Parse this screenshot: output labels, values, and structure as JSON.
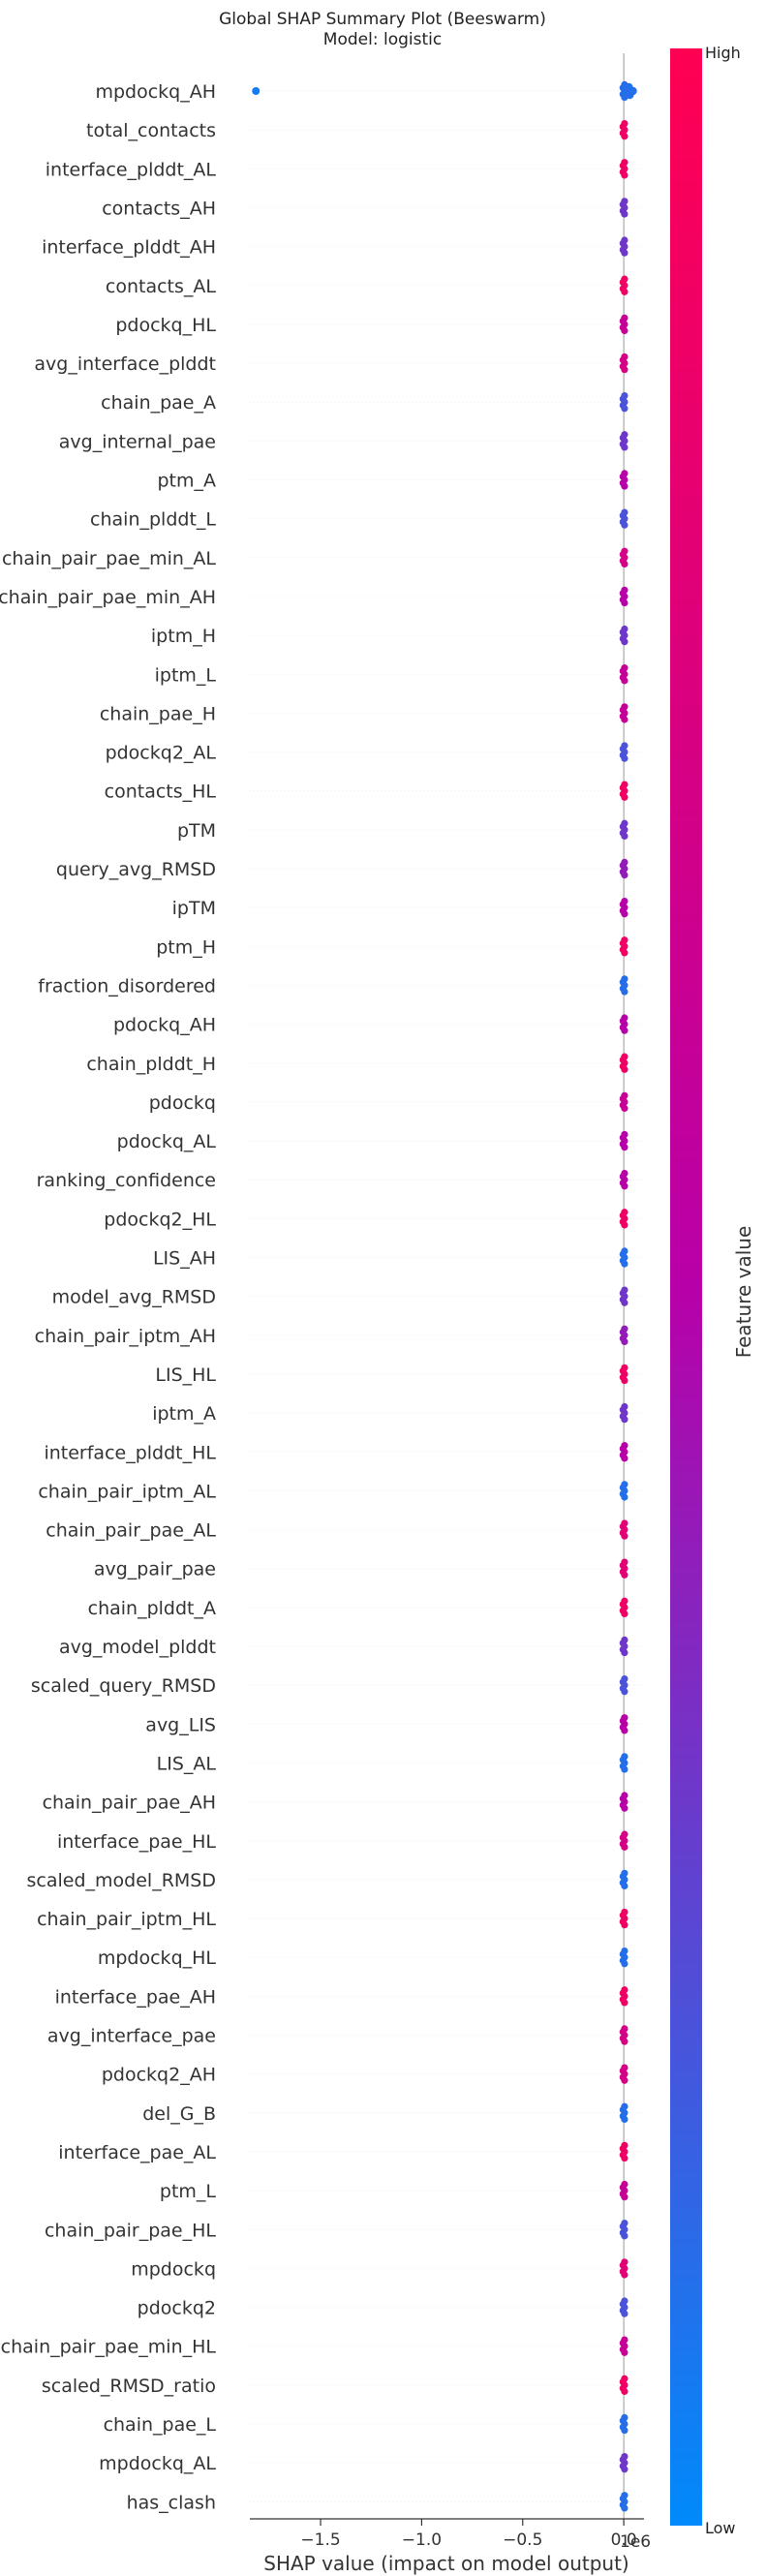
{
  "chart_data": {
    "type": "scatter",
    "subtype": "beeswarm",
    "title": "Global SHAP Summary Plot (Beeswarm)",
    "subtitle": "Model: logistic",
    "xlabel": "SHAP value (impact on model output)",
    "x_offset_label": "1e6",
    "xlim": [
      -1.85,
      0.1
    ],
    "x_ticks": [
      -1.5,
      -1.0,
      -0.5,
      0.0
    ],
    "x_tick_labels": [
      "−1.5",
      "−1.0",
      "−0.5",
      "0.0"
    ],
    "grid": false,
    "colorbar": {
      "label": "Feature value",
      "high_label": "High",
      "low_label": "Low",
      "low_color": "#008afb",
      "high_color": "#ff0052"
    },
    "features": [
      "mpdockq_AH",
      "total_contacts",
      "interface_plddt_AL",
      "contacts_AH",
      "interface_plddt_AH",
      "contacts_AL",
      "pdockq_HL",
      "avg_interface_plddt",
      "chain_pae_A",
      "avg_internal_pae",
      "ptm_A",
      "chain_plddt_L",
      "chain_pair_pae_min_AL",
      "chain_pair_pae_min_AH",
      "iptm_H",
      "iptm_L",
      "chain_pae_H",
      "pdockq2_AL",
      "contacts_HL",
      "pTM",
      "query_avg_RMSD",
      "ipTM",
      "ptm_H",
      "fraction_disordered",
      "pdockq_AH",
      "chain_plddt_H",
      "pdockq",
      "pdockq_AL",
      "ranking_confidence",
      "pdockq2_HL",
      "LIS_AH",
      "model_avg_RMSD",
      "chain_pair_iptm_AH",
      "LIS_HL",
      "iptm_A",
      "interface_plddt_HL",
      "chain_pair_iptm_AL",
      "chain_pair_pae_AL",
      "avg_pair_pae",
      "chain_plddt_A",
      "avg_model_plddt",
      "scaled_query_RMSD",
      "avg_LIS",
      "LIS_AL",
      "chain_pair_pae_AH",
      "interface_pae_HL",
      "scaled_model_RMSD",
      "chain_pair_iptm_HL",
      "mpdockq_HL",
      "interface_pae_AH",
      "avg_interface_pae",
      "pdockq2_AH",
      "del_G_B",
      "interface_pae_AL",
      "ptm_L",
      "chain_pair_pae_HL",
      "mpdockq",
      "pdockq2",
      "chain_pair_pae_min_HL",
      "scaled_RMSD_ratio",
      "chain_pae_L",
      "mpdockq_AL",
      "has_clash"
    ],
    "notes_outlier": {
      "feature": "mpdockq_AH",
      "x": -1.82,
      "color_level": 0.05
    },
    "row_color_level": [
      0.1,
      0.9,
      0.9,
      0.3,
      0.3,
      0.9,
      0.6,
      0.7,
      0.2,
      0.3,
      0.5,
      0.2,
      0.7,
      0.5,
      0.3,
      0.6,
      0.6,
      0.2,
      0.9,
      0.3,
      0.4,
      0.5,
      0.9,
      0.1,
      0.5,
      0.9,
      0.6,
      0.5,
      0.5,
      0.9,
      0.1,
      0.3,
      0.4,
      0.9,
      0.3,
      0.5,
      0.1,
      0.8,
      0.8,
      0.9,
      0.3,
      0.2,
      0.5,
      0.1,
      0.5,
      0.7,
      0.1,
      0.9,
      0.1,
      0.9,
      0.7,
      0.7,
      0.1,
      0.9,
      0.6,
      0.2,
      0.8,
      0.2,
      0.6,
      0.9,
      0.1,
      0.3,
      0.1
    ]
  }
}
